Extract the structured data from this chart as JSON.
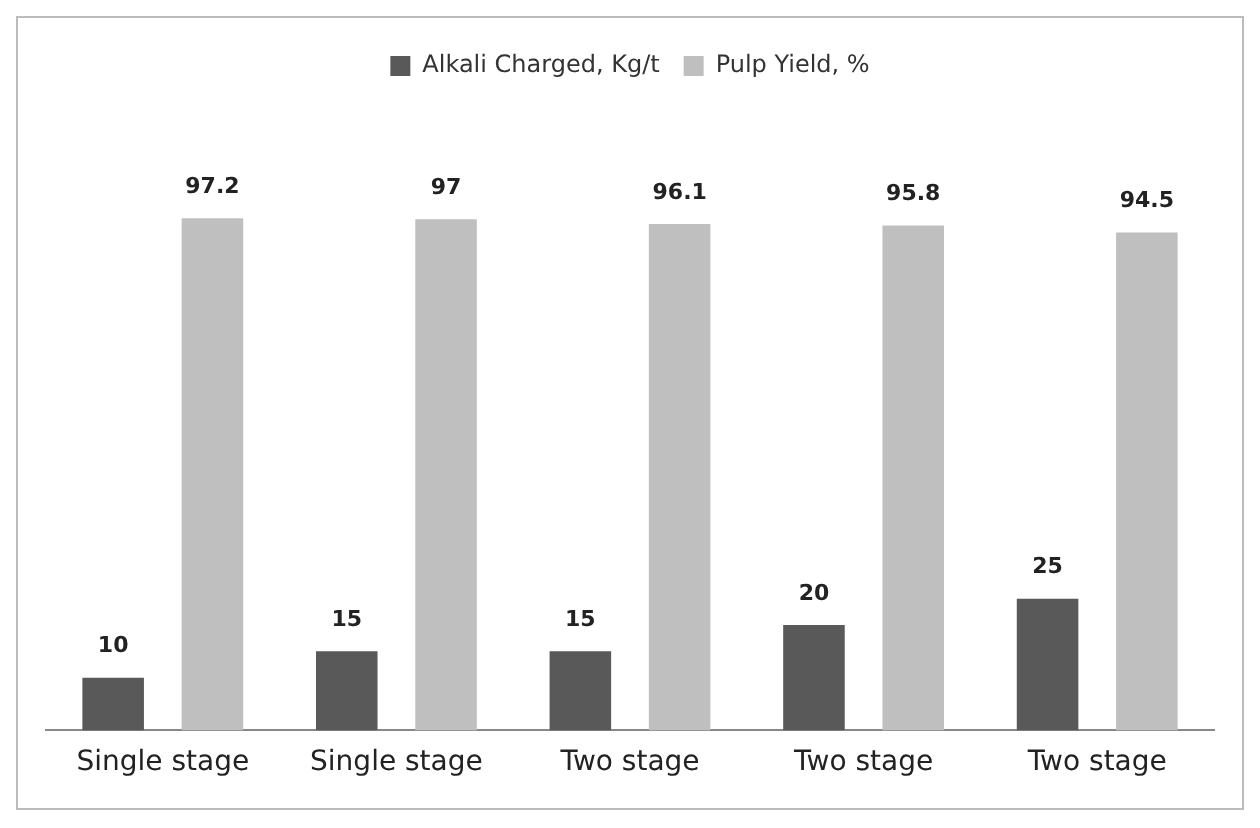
{
  "chart_data": {
    "type": "bar",
    "categories": [
      "Single stage",
      "Single stage",
      "Two stage",
      "Two stage",
      "Two stage"
    ],
    "series": [
      {
        "name": "Alkali Charged, Kg/t",
        "color": "#595959",
        "values": [
          10,
          15,
          15,
          20,
          25
        ]
      },
      {
        "name": "Pulp Yield, %",
        "color": "#bfbfbf",
        "values": [
          97.2,
          97,
          96.1,
          95.8,
          94.5
        ]
      }
    ],
    "data_labels": true,
    "legend": "top",
    "grid": false,
    "tick_labels": "x"
  }
}
